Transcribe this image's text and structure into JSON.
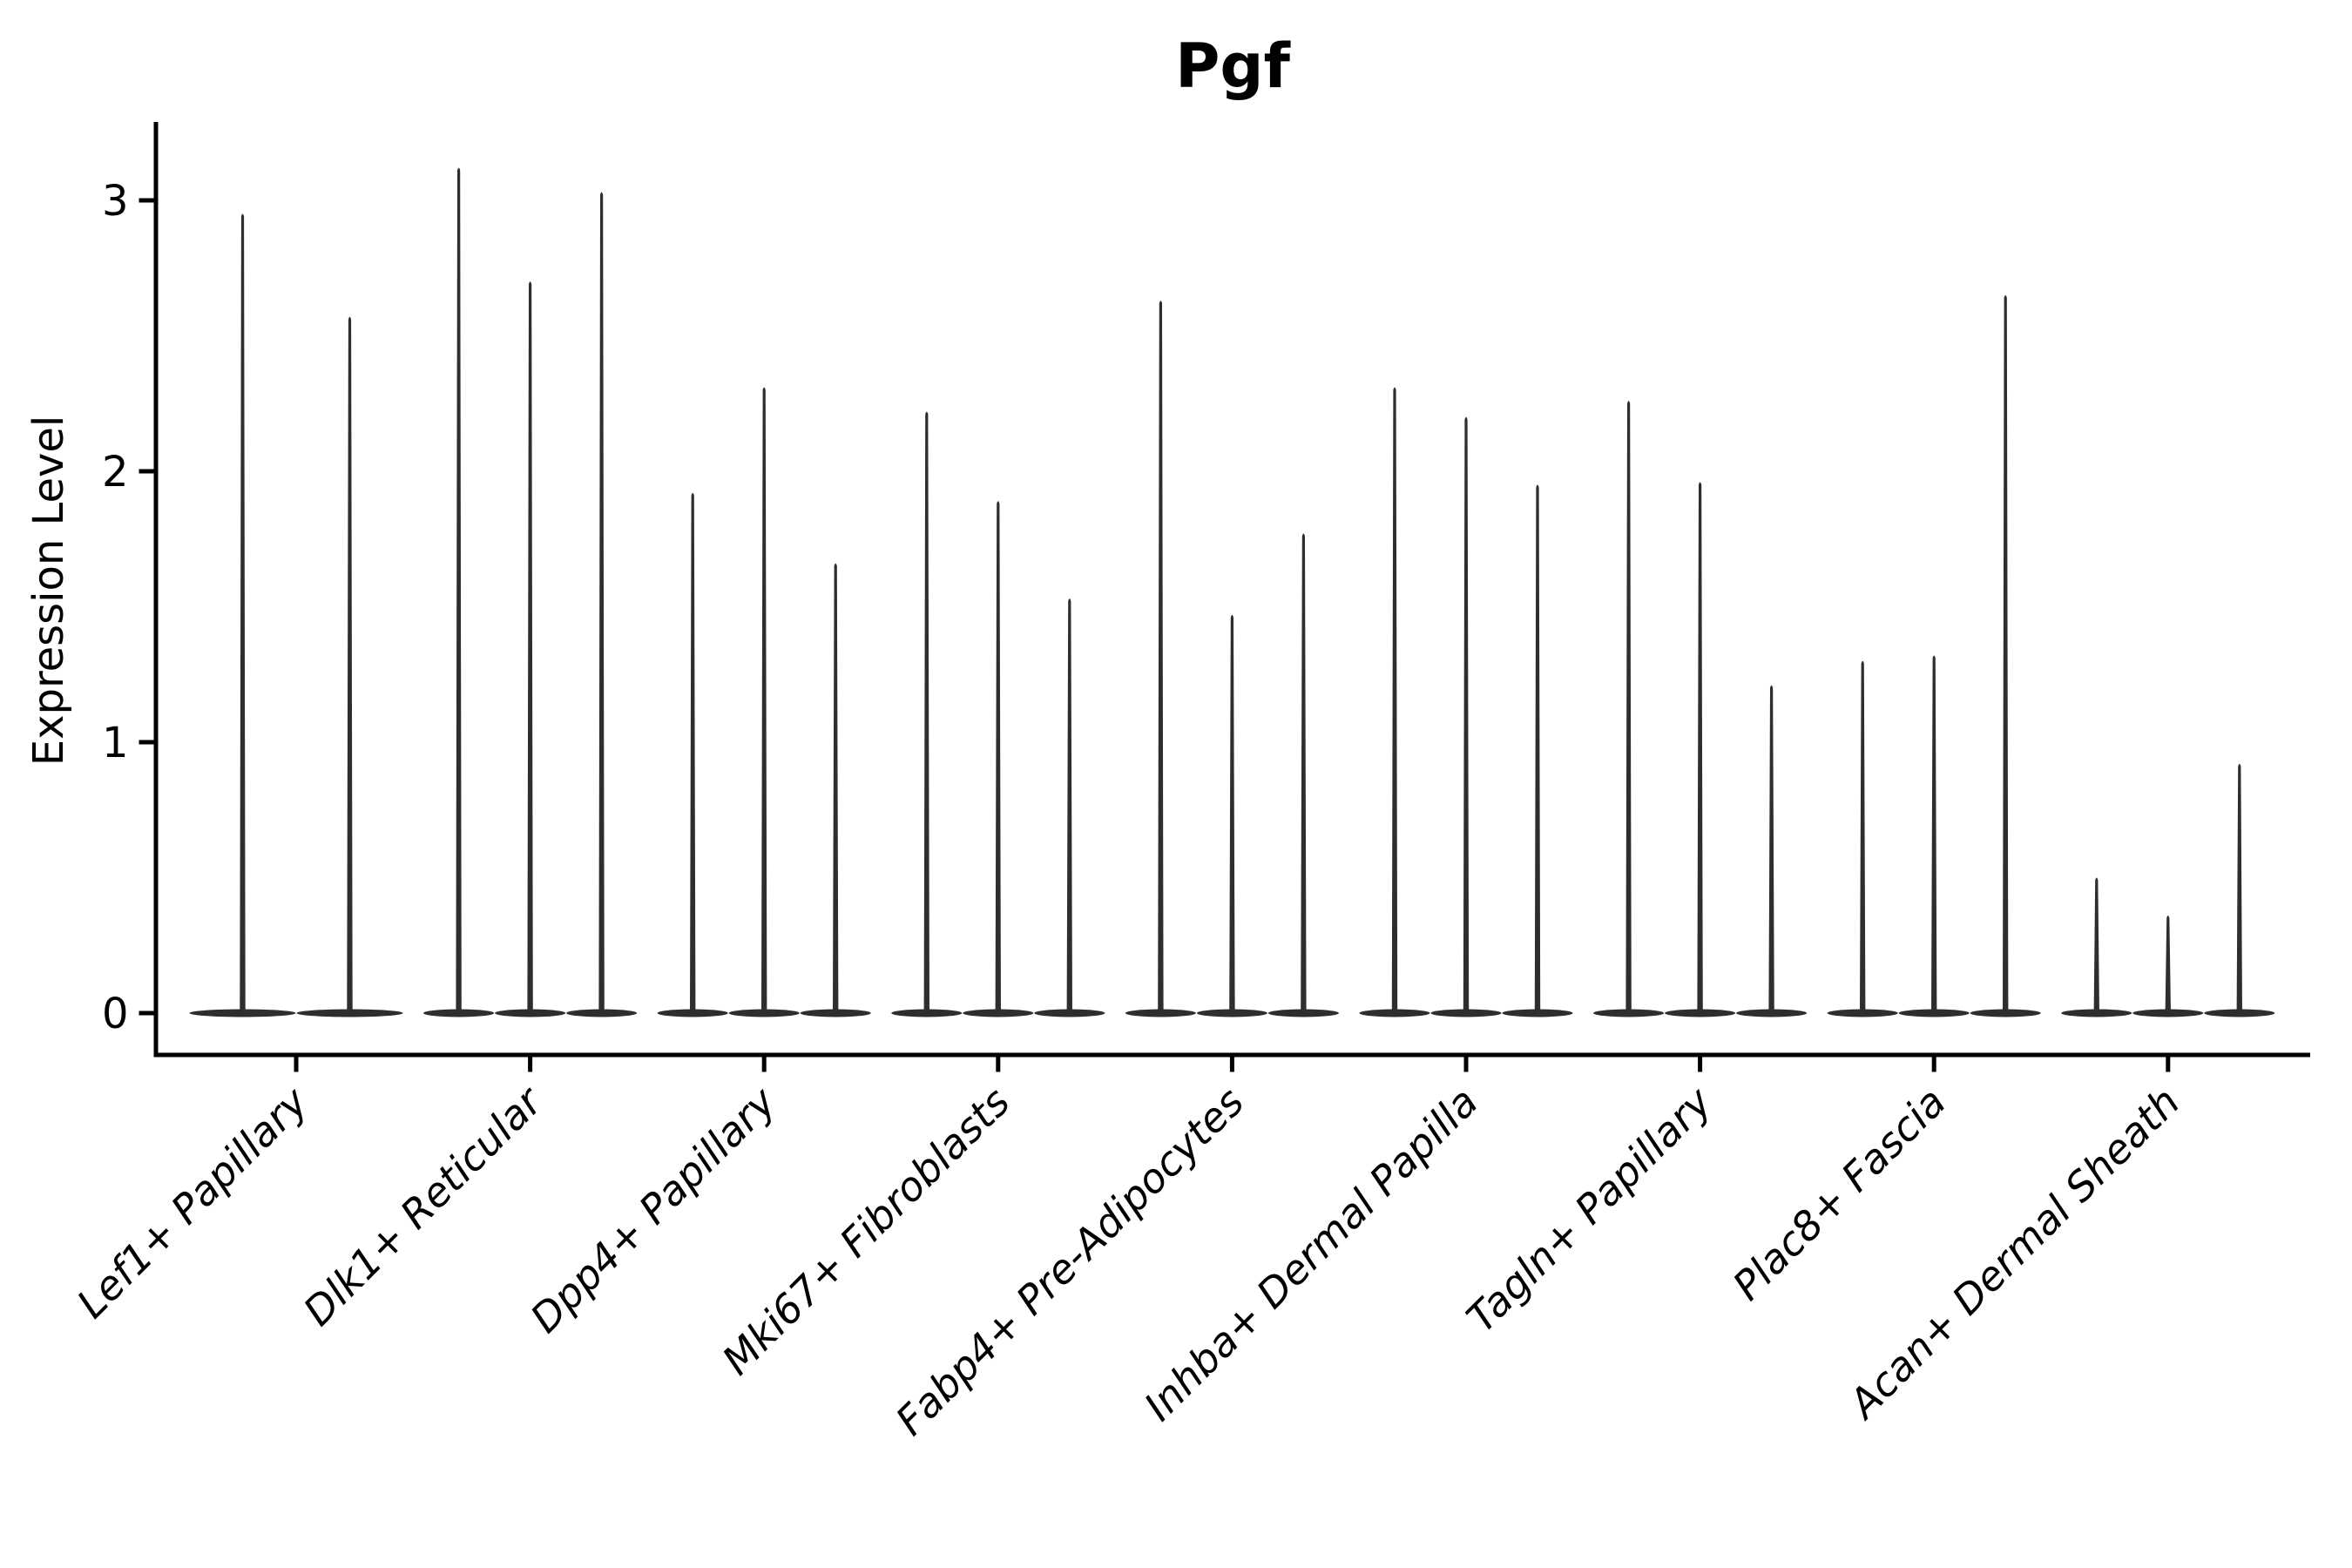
{
  "chart_data": {
    "type": "violin",
    "title": "Pgf",
    "ylabel": "Expression Level",
    "xlabel": "",
    "yticks": [
      0,
      1,
      2,
      3
    ],
    "ylim": [
      -0.15,
      3.3
    ],
    "grid": false,
    "legend": "none",
    "categories": [
      "Lef1+ Papillary",
      "Dlk1+ Reticular",
      "Dpp4+ Papillary",
      "Mki67+ Fibroblasts",
      "Fabp4+ Pre-Adipocytes",
      "Inhba+ Dermal Papilla",
      "Tagln+ Papillary",
      "Plac8+ Fascia",
      "Acan+ Dermal Sheath"
    ],
    "groups": [
      {
        "category": "Lef1+ Papillary",
        "spike_values": [
          2.95,
          2.57
        ]
      },
      {
        "category": "Dlk1+ Reticular",
        "spike_values": [
          3.12,
          2.7,
          3.03
        ]
      },
      {
        "category": "Dpp4+ Papillary",
        "spike_values": [
          1.92,
          2.31,
          1.66
        ]
      },
      {
        "category": "Mki67+ Fibroblasts",
        "spike_values": [
          2.22,
          1.89,
          1.53
        ]
      },
      {
        "category": "Fabp4+ Pre-Adipocytes",
        "spike_values": [
          2.63,
          1.47,
          1.77
        ]
      },
      {
        "category": "Inhba+ Dermal Papilla",
        "spike_values": [
          2.31,
          2.2,
          1.95
        ]
      },
      {
        "category": "Tagln+ Papillary",
        "spike_values": [
          2.26,
          1.96,
          1.21
        ]
      },
      {
        "category": "Plac8+ Fascia",
        "spike_values": [
          1.3,
          1.32,
          2.65
        ]
      },
      {
        "category": "Acan+ Dermal Sheath",
        "spike_values": [
          0.5,
          0.36,
          0.92
        ]
      }
    ]
  },
  "colors": {
    "violin": "#2e2e2e",
    "axis": "#000000",
    "text": "#000000",
    "background": "#ffffff"
  }
}
